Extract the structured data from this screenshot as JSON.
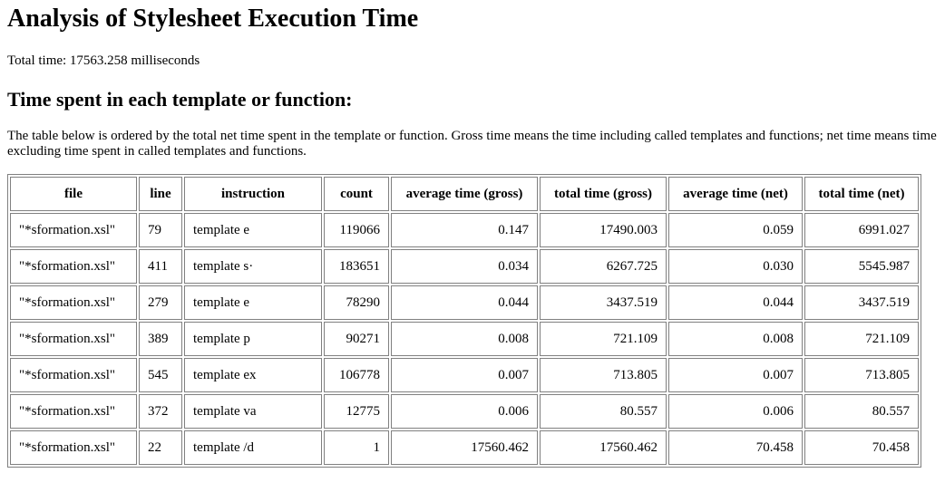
{
  "header": {
    "title": "Analysis of Stylesheet Execution Time",
    "total_time": "Total time: 17563.258 milliseconds"
  },
  "section": {
    "title": "Time spent in each template or function:",
    "description": "The table below is ordered by the total net time spent in the template or function. Gross time means the time including called templates and functions; net time means time excluding time spent in called templates and functions."
  },
  "table": {
    "columns": [
      "file",
      "line",
      "instruction",
      "count",
      "average time (gross)",
      "total time (gross)",
      "average time (net)",
      "total time (net)"
    ],
    "rows": [
      [
        "\"*sformation.xsl\"",
        "79",
        "template e",
        "119066",
        "0.147",
        "17490.003",
        "0.059",
        "6991.027"
      ],
      [
        "\"*sformation.xsl\"",
        "411",
        "template s·",
        "183651",
        "0.034",
        "6267.725",
        "0.030",
        "5545.987"
      ],
      [
        "\"*sformation.xsl\"",
        "279",
        "template e",
        "78290",
        "0.044",
        "3437.519",
        "0.044",
        "3437.519"
      ],
      [
        "\"*sformation.xsl\"",
        "389",
        "template p",
        "90271",
        "0.008",
        "721.109",
        "0.008",
        "721.109"
      ],
      [
        "\"*sformation.xsl\"",
        "545",
        "template ex",
        "106778",
        "0.007",
        "713.805",
        "0.007",
        "713.805"
      ],
      [
        "\"*sformation.xsl\"",
        "372",
        "template va",
        "12775",
        "0.006",
        "80.557",
        "0.006",
        "80.557"
      ],
      [
        "\"*sformation.xsl\"",
        "22",
        "template /d",
        "1",
        "17560.462",
        "17560.462",
        "70.458",
        "70.458"
      ]
    ]
  }
}
